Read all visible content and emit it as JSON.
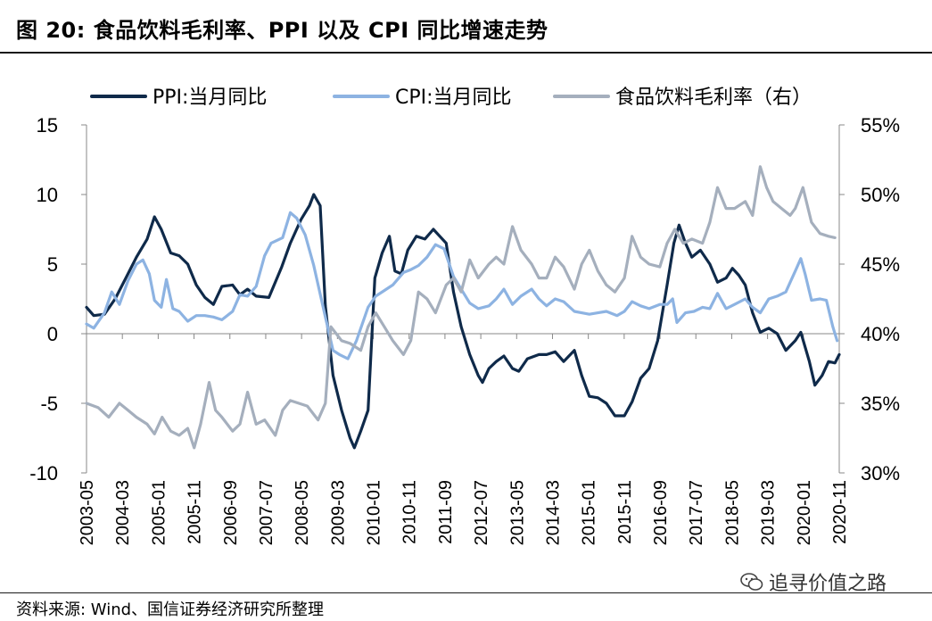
{
  "title": "图 20:  食品饮料毛利率、PPI 以及 CPI 同比增速走势",
  "source": "资料来源: Wind、国信证券经济研究所整理",
  "watermark": "追寻价值之路",
  "chart_data": {
    "type": "line",
    "y_left": {
      "lim": [
        -10,
        15
      ],
      "ticks": [
        "15",
        "10",
        "5",
        "0",
        "-5",
        "-10"
      ],
      "tick_values": [
        15,
        10,
        5,
        0,
        -5,
        -10
      ]
    },
    "y_right": {
      "lim": [
        30,
        55
      ],
      "ticks": [
        "55%",
        "50%",
        "45%",
        "40%",
        "35%",
        "30%"
      ],
      "tick_values": [
        55,
        50,
        45,
        40,
        35,
        30
      ]
    },
    "x_ticks": [
      "2003-05",
      "2004-03",
      "2005-01",
      "2005-11",
      "2006-09",
      "2007-07",
      "2008-05",
      "2009-03",
      "2010-01",
      "2010-11",
      "2011-09",
      "2012-07",
      "2013-05",
      "2014-03",
      "2015-01",
      "2015-11",
      "2016-09",
      "2017-07",
      "2018-05",
      "2019-03",
      "2020-01",
      "2020-11"
    ],
    "legend_position": "top",
    "series": [
      {
        "name": "PPI:当月同比",
        "axis": "left",
        "color": "#0f2a4a",
        "values": [
          [
            2003.33,
            1.9
          ],
          [
            2003.5,
            1.3
          ],
          [
            2003.75,
            1.4
          ],
          [
            2004.0,
            2.5
          ],
          [
            2004.25,
            4.0
          ],
          [
            2004.5,
            5.5
          ],
          [
            2004.75,
            6.8
          ],
          [
            2004.92,
            8.4
          ],
          [
            2005.08,
            7.5
          ],
          [
            2005.3,
            5.8
          ],
          [
            2005.5,
            5.6
          ],
          [
            2005.7,
            5.0
          ],
          [
            2005.9,
            3.5
          ],
          [
            2006.1,
            2.6
          ],
          [
            2006.3,
            2.1
          ],
          [
            2006.5,
            3.4
          ],
          [
            2006.75,
            3.5
          ],
          [
            2006.92,
            2.8
          ],
          [
            2007.1,
            3.2
          ],
          [
            2007.3,
            2.7
          ],
          [
            2007.6,
            2.6
          ],
          [
            2007.9,
            4.8
          ],
          [
            2008.1,
            6.5
          ],
          [
            2008.35,
            8.2
          ],
          [
            2008.55,
            9.2
          ],
          [
            2008.65,
            10.0
          ],
          [
            2008.8,
            9.2
          ],
          [
            2008.92,
            2.0
          ],
          [
            2009.1,
            -3.0
          ],
          [
            2009.3,
            -5.5
          ],
          [
            2009.5,
            -7.5
          ],
          [
            2009.6,
            -8.2
          ],
          [
            2009.75,
            -7.0
          ],
          [
            2009.92,
            -5.5
          ],
          [
            2010.08,
            4.0
          ],
          [
            2010.25,
            5.8
          ],
          [
            2010.42,
            7.0
          ],
          [
            2010.55,
            4.5
          ],
          [
            2010.7,
            4.3
          ],
          [
            2010.85,
            6.0
          ],
          [
            2011.05,
            7.0
          ],
          [
            2011.25,
            6.8
          ],
          [
            2011.45,
            7.5
          ],
          [
            2011.6,
            7.0
          ],
          [
            2011.75,
            6.5
          ],
          [
            2011.92,
            3.0
          ],
          [
            2012.1,
            0.5
          ],
          [
            2012.3,
            -1.5
          ],
          [
            2012.5,
            -3.0
          ],
          [
            2012.6,
            -3.5
          ],
          [
            2012.75,
            -2.5
          ],
          [
            2012.92,
            -2.0
          ],
          [
            2013.1,
            -1.6
          ],
          [
            2013.3,
            -2.5
          ],
          [
            2013.45,
            -2.7
          ],
          [
            2013.65,
            -1.8
          ],
          [
            2013.92,
            -1.5
          ],
          [
            2014.1,
            -1.5
          ],
          [
            2014.3,
            -1.3
          ],
          [
            2014.5,
            -2.0
          ],
          [
            2014.75,
            -1.2
          ],
          [
            2014.92,
            -3.0
          ],
          [
            2015.1,
            -4.5
          ],
          [
            2015.3,
            -4.6
          ],
          [
            2015.5,
            -5.0
          ],
          [
            2015.7,
            -5.9
          ],
          [
            2015.92,
            -5.9
          ],
          [
            2016.1,
            -4.9
          ],
          [
            2016.3,
            -3.2
          ],
          [
            2016.5,
            -2.5
          ],
          [
            2016.7,
            -0.5
          ],
          [
            2016.92,
            3.5
          ],
          [
            2017.08,
            6.5
          ],
          [
            2017.2,
            7.8
          ],
          [
            2017.35,
            6.5
          ],
          [
            2017.5,
            5.5
          ],
          [
            2017.7,
            6.0
          ],
          [
            2017.92,
            5.0
          ],
          [
            2018.1,
            3.7
          ],
          [
            2018.3,
            4.0
          ],
          [
            2018.45,
            4.7
          ],
          [
            2018.6,
            4.2
          ],
          [
            2018.75,
            3.5
          ],
          [
            2018.92,
            1.5
          ],
          [
            2019.1,
            0.1
          ],
          [
            2019.3,
            0.4
          ],
          [
            2019.5,
            0.0
          ],
          [
            2019.7,
            -1.2
          ],
          [
            2019.92,
            -0.5
          ],
          [
            2020.05,
            0.1
          ],
          [
            2020.25,
            -2.0
          ],
          [
            2020.38,
            -3.7
          ],
          [
            2020.55,
            -3.0
          ],
          [
            2020.7,
            -2.0
          ],
          [
            2020.85,
            -2.1
          ],
          [
            2020.95,
            -1.5
          ]
        ]
      },
      {
        "name": "CPI:当月同比",
        "axis": "left",
        "color": "#8db3e2",
        "values": [
          [
            2003.33,
            0.7
          ],
          [
            2003.5,
            0.4
          ],
          [
            2003.75,
            1.5
          ],
          [
            2003.92,
            3.0
          ],
          [
            2004.1,
            2.1
          ],
          [
            2004.3,
            3.8
          ],
          [
            2004.5,
            5.0
          ],
          [
            2004.65,
            5.3
          ],
          [
            2004.8,
            4.3
          ],
          [
            2004.92,
            2.4
          ],
          [
            2005.08,
            1.9
          ],
          [
            2005.2,
            3.9
          ],
          [
            2005.35,
            1.8
          ],
          [
            2005.5,
            1.6
          ],
          [
            2005.7,
            0.9
          ],
          [
            2005.9,
            1.3
          ],
          [
            2006.1,
            1.3
          ],
          [
            2006.3,
            1.2
          ],
          [
            2006.5,
            1.0
          ],
          [
            2006.75,
            1.6
          ],
          [
            2006.92,
            2.8
          ],
          [
            2007.1,
            2.7
          ],
          [
            2007.3,
            3.4
          ],
          [
            2007.5,
            5.6
          ],
          [
            2007.65,
            6.5
          ],
          [
            2007.92,
            6.9
          ],
          [
            2008.1,
            8.7
          ],
          [
            2008.25,
            8.3
          ],
          [
            2008.45,
            7.1
          ],
          [
            2008.65,
            4.9
          ],
          [
            2008.92,
            1.2
          ],
          [
            2009.1,
            -1.2
          ],
          [
            2009.25,
            -1.5
          ],
          [
            2009.45,
            -1.8
          ],
          [
            2009.65,
            -0.5
          ],
          [
            2009.92,
            1.9
          ],
          [
            2010.1,
            2.7
          ],
          [
            2010.3,
            3.1
          ],
          [
            2010.5,
            3.5
          ],
          [
            2010.75,
            4.4
          ],
          [
            2010.92,
            4.6
          ],
          [
            2011.1,
            4.9
          ],
          [
            2011.3,
            5.5
          ],
          [
            2011.5,
            6.4
          ],
          [
            2011.7,
            6.1
          ],
          [
            2011.92,
            4.1
          ],
          [
            2012.1,
            3.2
          ],
          [
            2012.3,
            2.2
          ],
          [
            2012.5,
            1.8
          ],
          [
            2012.75,
            2.0
          ],
          [
            2012.92,
            2.5
          ],
          [
            2013.1,
            3.2
          ],
          [
            2013.3,
            2.1
          ],
          [
            2013.5,
            2.7
          ],
          [
            2013.75,
            3.2
          ],
          [
            2013.92,
            2.5
          ],
          [
            2014.1,
            2.0
          ],
          [
            2014.3,
            2.5
          ],
          [
            2014.5,
            2.3
          ],
          [
            2014.75,
            1.6
          ],
          [
            2014.92,
            1.5
          ],
          [
            2015.1,
            1.4
          ],
          [
            2015.3,
            1.5
          ],
          [
            2015.5,
            1.6
          ],
          [
            2015.75,
            1.3
          ],
          [
            2015.92,
            1.6
          ],
          [
            2016.1,
            2.3
          ],
          [
            2016.3,
            2.0
          ],
          [
            2016.5,
            1.8
          ],
          [
            2016.75,
            2.1
          ],
          [
            2016.92,
            2.1
          ],
          [
            2017.05,
            2.5
          ],
          [
            2017.15,
            0.8
          ],
          [
            2017.35,
            1.5
          ],
          [
            2017.55,
            1.6
          ],
          [
            2017.75,
            1.9
          ],
          [
            2017.92,
            1.8
          ],
          [
            2018.1,
            2.9
          ],
          [
            2018.3,
            1.8
          ],
          [
            2018.5,
            2.1
          ],
          [
            2018.75,
            2.5
          ],
          [
            2018.92,
            1.9
          ],
          [
            2019.1,
            1.5
          ],
          [
            2019.3,
            2.5
          ],
          [
            2019.5,
            2.7
          ],
          [
            2019.7,
            3.0
          ],
          [
            2019.92,
            4.5
          ],
          [
            2020.05,
            5.4
          ],
          [
            2020.15,
            4.3
          ],
          [
            2020.3,
            2.4
          ],
          [
            2020.5,
            2.5
          ],
          [
            2020.65,
            2.4
          ],
          [
            2020.8,
            0.5
          ],
          [
            2020.9,
            -0.5
          ]
        ]
      },
      {
        "name": "食品饮料毛利率（右）",
        "axis": "right",
        "color": "#a5afbd",
        "values": [
          [
            2003.33,
            35.0
          ],
          [
            2003.6,
            34.7
          ],
          [
            2003.85,
            34.0
          ],
          [
            2004.1,
            35.0
          ],
          [
            2004.3,
            34.5
          ],
          [
            2004.5,
            34.0
          ],
          [
            2004.75,
            33.5
          ],
          [
            2004.92,
            32.8
          ],
          [
            2005.1,
            34.0
          ],
          [
            2005.3,
            33.0
          ],
          [
            2005.5,
            32.7
          ],
          [
            2005.7,
            33.2
          ],
          [
            2005.85,
            31.8
          ],
          [
            2006.0,
            33.5
          ],
          [
            2006.2,
            36.5
          ],
          [
            2006.35,
            34.5
          ],
          [
            2006.5,
            34.0
          ],
          [
            2006.75,
            33.0
          ],
          [
            2006.92,
            33.5
          ],
          [
            2007.1,
            35.8
          ],
          [
            2007.3,
            33.5
          ],
          [
            2007.5,
            33.8
          ],
          [
            2007.75,
            32.7
          ],
          [
            2007.92,
            34.5
          ],
          [
            2008.1,
            35.2
          ],
          [
            2008.3,
            35.0
          ],
          [
            2008.5,
            34.8
          ],
          [
            2008.75,
            33.8
          ],
          [
            2008.92,
            35.0
          ],
          [
            2009.05,
            40.5
          ],
          [
            2009.3,
            39.5
          ],
          [
            2009.5,
            39.3
          ],
          [
            2009.75,
            38.8
          ],
          [
            2009.92,
            40.5
          ],
          [
            2010.1,
            41.5
          ],
          [
            2010.3,
            40.5
          ],
          [
            2010.5,
            39.5
          ],
          [
            2010.75,
            38.5
          ],
          [
            2010.92,
            39.5
          ],
          [
            2011.1,
            43.0
          ],
          [
            2011.3,
            42.5
          ],
          [
            2011.5,
            41.5
          ],
          [
            2011.75,
            43.5
          ],
          [
            2011.92,
            44.0
          ],
          [
            2012.1,
            43.0
          ],
          [
            2012.3,
            45.3
          ],
          [
            2012.5,
            44.0
          ],
          [
            2012.75,
            45.0
          ],
          [
            2012.92,
            45.5
          ],
          [
            2013.1,
            45.0
          ],
          [
            2013.3,
            47.7
          ],
          [
            2013.5,
            46.0
          ],
          [
            2013.75,
            45.0
          ],
          [
            2013.92,
            44.0
          ],
          [
            2014.1,
            44.0
          ],
          [
            2014.3,
            45.5
          ],
          [
            2014.5,
            44.8
          ],
          [
            2014.75,
            43.2
          ],
          [
            2014.92,
            45.0
          ],
          [
            2015.1,
            46.0
          ],
          [
            2015.3,
            44.5
          ],
          [
            2015.5,
            43.5
          ],
          [
            2015.7,
            43.0
          ],
          [
            2015.92,
            44.0
          ],
          [
            2016.1,
            47.0
          ],
          [
            2016.3,
            45.5
          ],
          [
            2016.5,
            45.0
          ],
          [
            2016.75,
            44.8
          ],
          [
            2016.92,
            46.5
          ],
          [
            2017.1,
            47.5
          ],
          [
            2017.3,
            46.5
          ],
          [
            2017.5,
            46.8
          ],
          [
            2017.75,
            46.5
          ],
          [
            2017.92,
            48.0
          ],
          [
            2018.1,
            50.5
          ],
          [
            2018.3,
            49.0
          ],
          [
            2018.5,
            49.0
          ],
          [
            2018.75,
            49.5
          ],
          [
            2018.92,
            48.5
          ],
          [
            2019.1,
            52.0
          ],
          [
            2019.25,
            50.5
          ],
          [
            2019.4,
            49.5
          ],
          [
            2019.6,
            49.0
          ],
          [
            2019.8,
            48.5
          ],
          [
            2019.92,
            49.0
          ],
          [
            2020.1,
            50.5
          ],
          [
            2020.3,
            48.0
          ],
          [
            2020.5,
            47.2
          ],
          [
            2020.7,
            47.0
          ],
          [
            2020.85,
            46.9
          ]
        ]
      }
    ]
  }
}
